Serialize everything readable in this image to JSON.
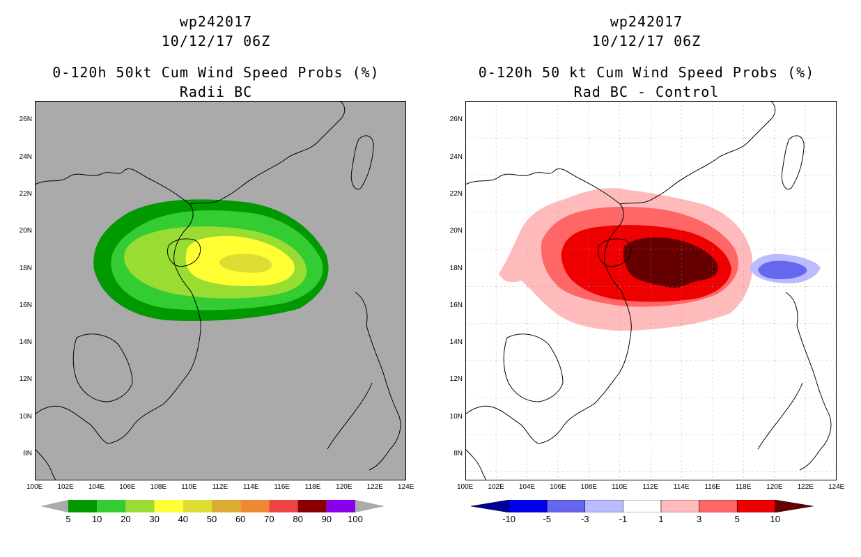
{
  "left": {
    "id_line": "wp242017",
    "date_line": "10/12/17 06Z",
    "title_line": "0-120h 50kt Cum Wind Speed Probs (%)",
    "subtitle_line": "Radii BC",
    "colorbar_labels": [
      "5",
      "10",
      "20",
      "30",
      "40",
      "50",
      "60",
      "70",
      "80",
      "90",
      "100"
    ],
    "colorbar_colors": [
      "#009900",
      "#33cc33",
      "#99dd33",
      "#ffff33",
      "#dddd33",
      "#ddaa33",
      "#ee8833",
      "#ee4444",
      "#880000",
      "#8800ee"
    ]
  },
  "right": {
    "id_line": "wp242017",
    "date_line": "10/12/17 06Z",
    "title_line": "0-120h 50 kt Cum Wind Speed Probs (%)",
    "subtitle_line": "Rad BC - Control",
    "colorbar_labels": [
      "-10",
      "-5",
      "-3",
      "-1",
      "1",
      "3",
      "5",
      "10"
    ],
    "colorbar_colors": [
      "#000099",
      "#0000ee",
      "#6666ee",
      "#bbbbff",
      "#ffffff",
      "#ffbbbb",
      "#ff6666",
      "#ee0000",
      "#660000"
    ]
  },
  "axes": {
    "x_ticks": [
      "100E",
      "102E",
      "104E",
      "106E",
      "108E",
      "110E",
      "112E",
      "114E",
      "116E",
      "118E",
      "120E",
      "122E",
      "124E"
    ],
    "y_ticks": [
      "8N",
      "10N",
      "12N",
      "14N",
      "16N",
      "18N",
      "20N",
      "22N",
      "24N",
      "26N"
    ]
  }
}
